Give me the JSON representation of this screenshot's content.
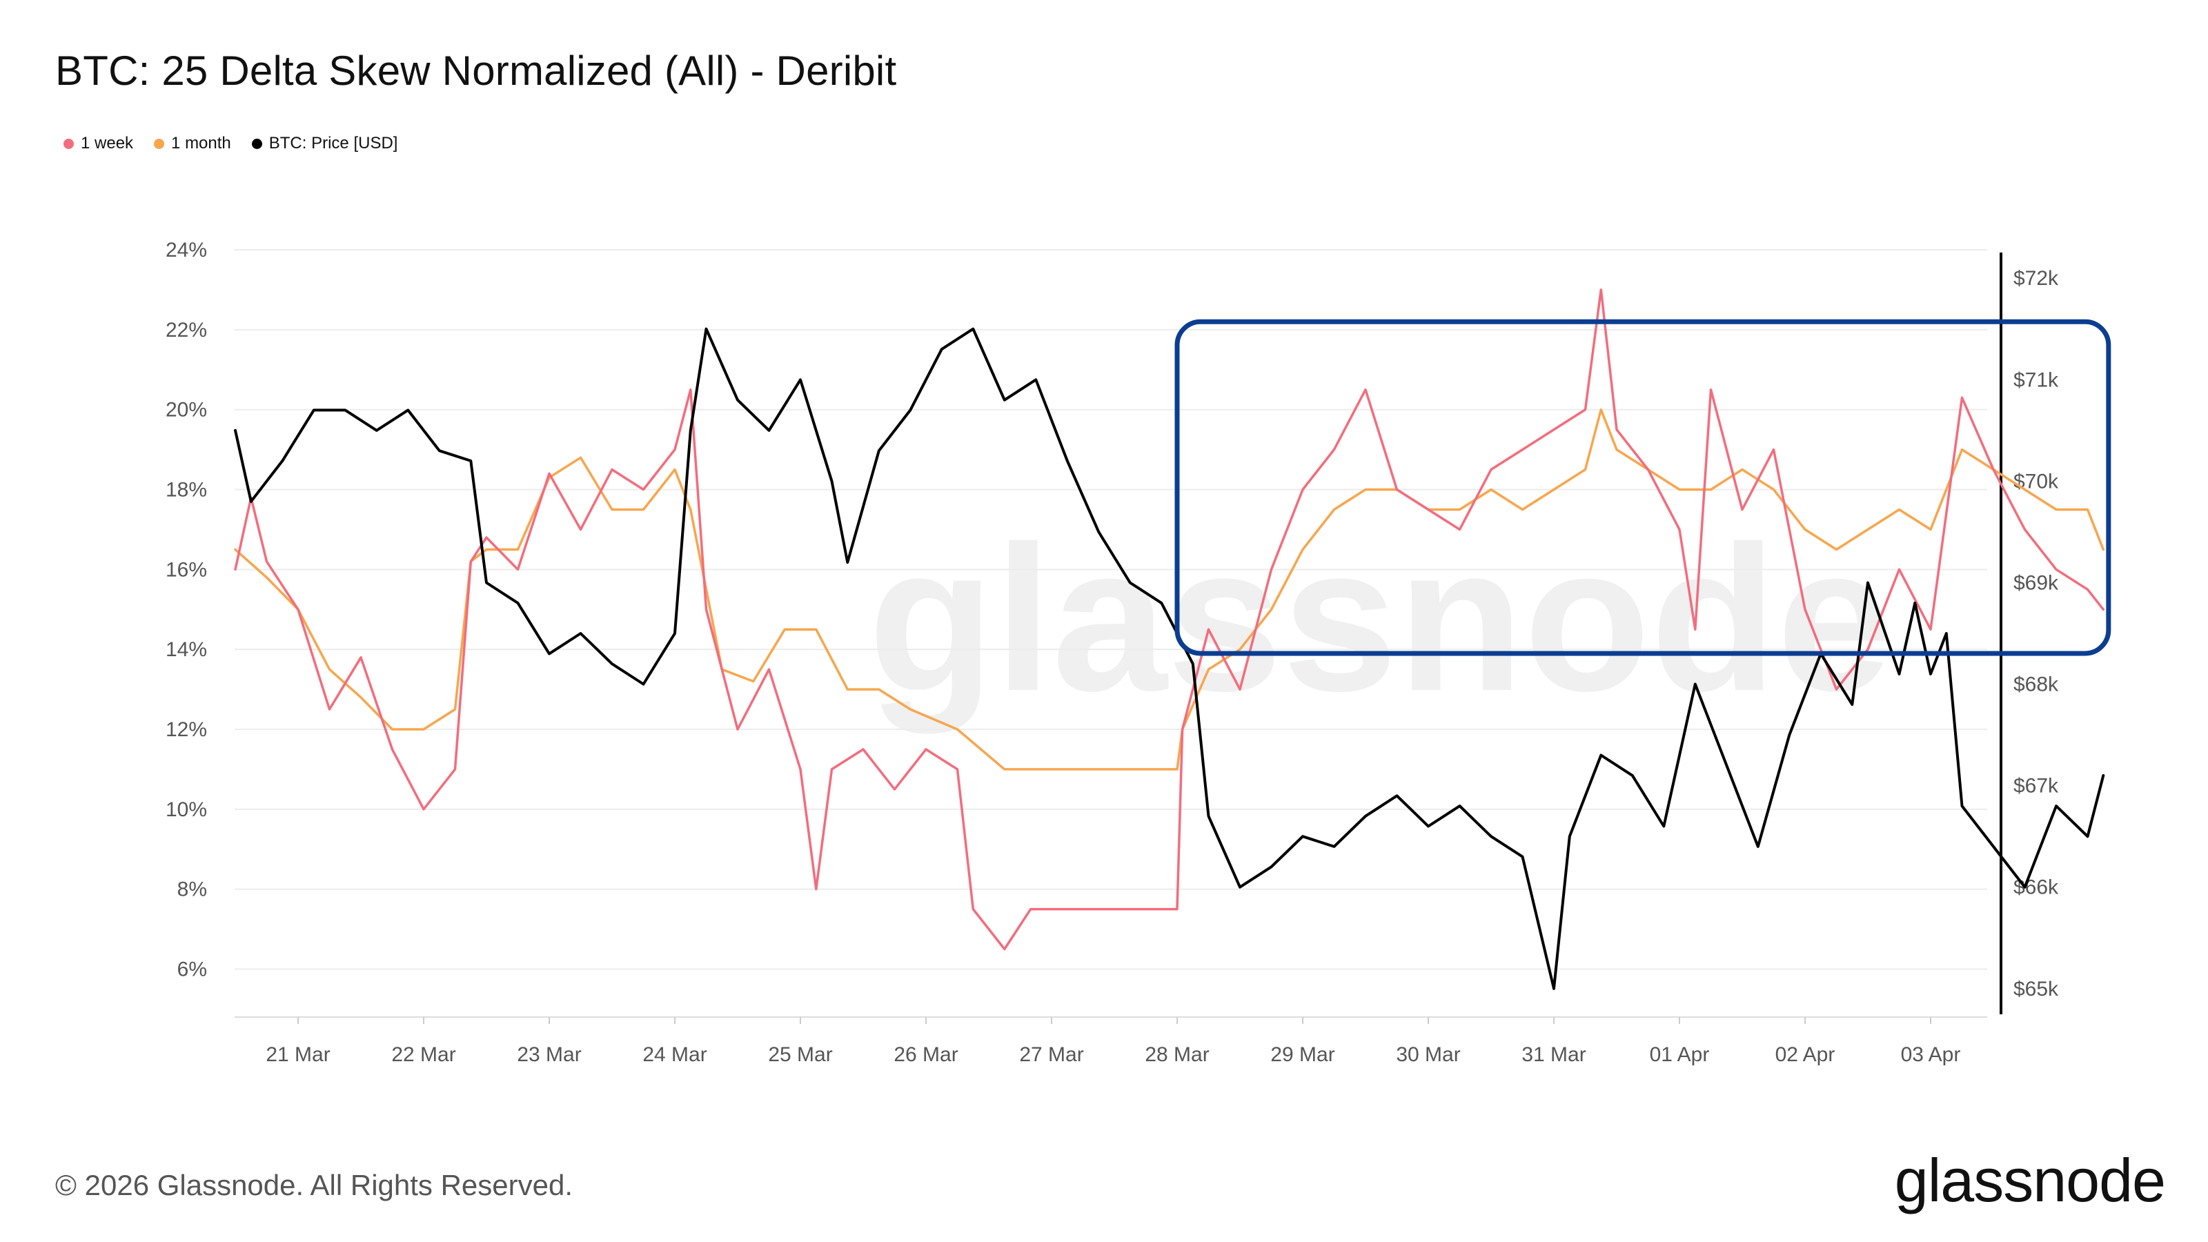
{
  "header": {
    "title": "BTC: 25 Delta Skew Normalized (All) - Deribit"
  },
  "legend": [
    {
      "label": "1 week",
      "color": "#f26d7d"
    },
    {
      "label": "1 month",
      "color": "#f7a64e"
    },
    {
      "label": "BTC: Price [USD]",
      "color": "#000000"
    }
  ],
  "footer": {
    "copyright": "© 2026 Glassnode. All Rights Reserved.",
    "logo": "glassnode"
  },
  "watermark": "glassnode",
  "chart_data": {
    "type": "line",
    "title": "BTC: 25 Delta Skew Normalized (All) - Deribit",
    "x_axis": {
      "type": "time",
      "start": "2026-03-20T12:00",
      "end": "2026-04-03T12:00",
      "tick_labels": [
        "21 Mar",
        "22 Mar",
        "23 Mar",
        "24 Mar",
        "25 Mar",
        "26 Mar",
        "27 Mar",
        "28 Mar",
        "29 Mar",
        "30 Mar",
        "31 Mar",
        "01 Apr",
        "02 Apr",
        "03 Apr"
      ],
      "tick_dates": [
        "2026-03-21",
        "2026-03-22",
        "2026-03-23",
        "2026-03-24",
        "2026-03-25",
        "2026-03-26",
        "2026-03-27",
        "2026-03-28",
        "2026-03-29",
        "2026-03-30",
        "2026-03-31",
        "2026-04-01",
        "2026-04-02",
        "2026-04-03"
      ]
    },
    "y_left": {
      "unit": "%",
      "ylim": [
        4.8,
        24
      ],
      "ticks": [
        6,
        8,
        10,
        12,
        14,
        16,
        18,
        20,
        22,
        24
      ],
      "tick_labels": [
        "6%",
        "8%",
        "10%",
        "12%",
        "14%",
        "16%",
        "18%",
        "20%",
        "22%",
        "24%"
      ]
    },
    "y_right": {
      "unit": "USD",
      "ylim": [
        64720,
        72280
      ],
      "ticks": [
        65000,
        66000,
        67000,
        68000,
        69000,
        70000,
        71000,
        72000
      ],
      "tick_labels": [
        "$65k",
        "$66k",
        "$67k",
        "$68k",
        "$69k",
        "$70k",
        "$71k",
        "$72k"
      ]
    },
    "grid": {
      "horizontal": true,
      "vertical": false
    },
    "legend_position": "top-left",
    "series": [
      {
        "name": "1 week",
        "axis": "left",
        "color": "#f26d7d",
        "points": [
          [
            "2026-03-20T12:00",
            16.0
          ],
          [
            "2026-03-20T15:00",
            17.8
          ],
          [
            "2026-03-20T18:00",
            16.2
          ],
          [
            "2026-03-21T00:00",
            15.0
          ],
          [
            "2026-03-21T06:00",
            12.5
          ],
          [
            "2026-03-21T12:00",
            13.8
          ],
          [
            "2026-03-21T18:00",
            11.5
          ],
          [
            "2026-03-22T00:00",
            10.0
          ],
          [
            "2026-03-22T06:00",
            11.0
          ],
          [
            "2026-03-22T09:00",
            16.2
          ],
          [
            "2026-03-22T12:00",
            16.8
          ],
          [
            "2026-03-22T18:00",
            16.0
          ],
          [
            "2026-03-23T00:00",
            18.4
          ],
          [
            "2026-03-23T06:00",
            17.0
          ],
          [
            "2026-03-23T12:00",
            18.5
          ],
          [
            "2026-03-23T18:00",
            18.0
          ],
          [
            "2026-03-24T00:00",
            19.0
          ],
          [
            "2026-03-24T03:00",
            20.5
          ],
          [
            "2026-03-24T06:00",
            15.0
          ],
          [
            "2026-03-24T12:00",
            12.0
          ],
          [
            "2026-03-24T18:00",
            13.5
          ],
          [
            "2026-03-25T00:00",
            11.0
          ],
          [
            "2026-03-25T03:00",
            8.0
          ],
          [
            "2026-03-25T06:00",
            11.0
          ],
          [
            "2026-03-25T12:00",
            11.5
          ],
          [
            "2026-03-25T18:00",
            10.5
          ],
          [
            "2026-03-26T00:00",
            11.5
          ],
          [
            "2026-03-26T06:00",
            11.0
          ],
          [
            "2026-03-26T09:00",
            7.5
          ],
          [
            "2026-03-26T15:00",
            6.5
          ],
          [
            "2026-03-26T20:00",
            7.5
          ],
          [
            "2026-03-28T00:00",
            7.5
          ],
          [
            "2026-03-28T01:00",
            12.0
          ],
          [
            "2026-03-28T06:00",
            14.5
          ],
          [
            "2026-03-28T12:00",
            13.0
          ],
          [
            "2026-03-28T18:00",
            16.0
          ],
          [
            "2026-03-29T00:00",
            18.0
          ],
          [
            "2026-03-29T06:00",
            19.0
          ],
          [
            "2026-03-29T12:00",
            20.5
          ],
          [
            "2026-03-29T18:00",
            18.0
          ],
          [
            "2026-03-30T00:00",
            17.5
          ],
          [
            "2026-03-30T06:00",
            17.0
          ],
          [
            "2026-03-30T12:00",
            18.5
          ],
          [
            "2026-03-30T18:00",
            19.0
          ],
          [
            "2026-03-31T00:00",
            19.5
          ],
          [
            "2026-03-31T06:00",
            20.0
          ],
          [
            "2026-03-31T09:00",
            23.0
          ],
          [
            "2026-03-31T12:00",
            19.5
          ],
          [
            "2026-03-31T18:00",
            18.5
          ],
          [
            "2026-04-01T00:00",
            17.0
          ],
          [
            "2026-04-01T03:00",
            14.5
          ],
          [
            "2026-04-01T06:00",
            20.5
          ],
          [
            "2026-04-01T12:00",
            17.5
          ],
          [
            "2026-04-01T18:00",
            19.0
          ],
          [
            "2026-04-02T00:00",
            15.0
          ],
          [
            "2026-04-02T06:00",
            13.0
          ],
          [
            "2026-04-02T12:00",
            14.0
          ],
          [
            "2026-04-02T18:00",
            16.0
          ],
          [
            "2026-04-03T00:00",
            14.5
          ],
          [
            "2026-04-03T06:00",
            20.3
          ],
          [
            "2026-04-03T12:00",
            18.5
          ],
          [
            "2026-04-03T18:00",
            17.0
          ],
          [
            "2026-04-04T00:00",
            16.0
          ],
          [
            "2026-04-04T06:00",
            15.5
          ],
          [
            "2026-04-04T09:00",
            15.0
          ]
        ]
      },
      {
        "name": "1 month",
        "axis": "left",
        "color": "#f7a64e",
        "points": [
          [
            "2026-03-20T12:00",
            16.5
          ],
          [
            "2026-03-20T18:00",
            15.8
          ],
          [
            "2026-03-21T00:00",
            15.0
          ],
          [
            "2026-03-21T06:00",
            13.5
          ],
          [
            "2026-03-21T12:00",
            12.8
          ],
          [
            "2026-03-21T18:00",
            12.0
          ],
          [
            "2026-03-22T00:00",
            12.0
          ],
          [
            "2026-03-22T06:00",
            12.5
          ],
          [
            "2026-03-22T09:00",
            16.2
          ],
          [
            "2026-03-22T12:00",
            16.5
          ],
          [
            "2026-03-22T18:00",
            16.5
          ],
          [
            "2026-03-23T00:00",
            18.3
          ],
          [
            "2026-03-23T06:00",
            18.8
          ],
          [
            "2026-03-23T12:00",
            17.5
          ],
          [
            "2026-03-23T18:00",
            17.5
          ],
          [
            "2026-03-24T00:00",
            18.5
          ],
          [
            "2026-03-24T03:00",
            17.5
          ],
          [
            "2026-03-24T09:00",
            13.5
          ],
          [
            "2026-03-24T15:00",
            13.2
          ],
          [
            "2026-03-24T21:00",
            14.5
          ],
          [
            "2026-03-25T03:00",
            14.5
          ],
          [
            "2026-03-25T09:00",
            13.0
          ],
          [
            "2026-03-25T15:00",
            13.0
          ],
          [
            "2026-03-25T21:00",
            12.5
          ],
          [
            "2026-03-26T06:00",
            12.0
          ],
          [
            "2026-03-26T15:00",
            11.0
          ],
          [
            "2026-03-27T00:00",
            11.0
          ],
          [
            "2026-03-28T00:00",
            11.0
          ],
          [
            "2026-03-28T01:00",
            12.0
          ],
          [
            "2026-03-28T06:00",
            13.5
          ],
          [
            "2026-03-28T12:00",
            14.0
          ],
          [
            "2026-03-28T18:00",
            15.0
          ],
          [
            "2026-03-29T00:00",
            16.5
          ],
          [
            "2026-03-29T06:00",
            17.5
          ],
          [
            "2026-03-29T12:00",
            18.0
          ],
          [
            "2026-03-29T18:00",
            18.0
          ],
          [
            "2026-03-30T00:00",
            17.5
          ],
          [
            "2026-03-30T06:00",
            17.5
          ],
          [
            "2026-03-30T12:00",
            18.0
          ],
          [
            "2026-03-30T18:00",
            17.5
          ],
          [
            "2026-03-31T00:00",
            18.0
          ],
          [
            "2026-03-31T06:00",
            18.5
          ],
          [
            "2026-03-31T09:00",
            20.0
          ],
          [
            "2026-03-31T12:00",
            19.0
          ],
          [
            "2026-03-31T18:00",
            18.5
          ],
          [
            "2026-04-01T00:00",
            18.0
          ],
          [
            "2026-04-01T06:00",
            18.0
          ],
          [
            "2026-04-01T12:00",
            18.5
          ],
          [
            "2026-04-01T18:00",
            18.0
          ],
          [
            "2026-04-02T00:00",
            17.0
          ],
          [
            "2026-04-02T06:00",
            16.5
          ],
          [
            "2026-04-02T12:00",
            17.0
          ],
          [
            "2026-04-02T18:00",
            17.5
          ],
          [
            "2026-04-03T00:00",
            17.0
          ],
          [
            "2026-04-03T06:00",
            19.0
          ],
          [
            "2026-04-03T12:00",
            18.5
          ],
          [
            "2026-04-03T18:00",
            18.0
          ],
          [
            "2026-04-04T00:00",
            17.5
          ],
          [
            "2026-04-04T06:00",
            17.5
          ],
          [
            "2026-04-04T09:00",
            16.5
          ]
        ]
      },
      {
        "name": "BTC: Price [USD]",
        "axis": "right",
        "color": "#000000",
        "points": [
          [
            "2026-03-20T12:00",
            70500
          ],
          [
            "2026-03-20T15:00",
            69800
          ],
          [
            "2026-03-20T21:00",
            70200
          ],
          [
            "2026-03-21T03:00",
            70700
          ],
          [
            "2026-03-21T09:00",
            70700
          ],
          [
            "2026-03-21T15:00",
            70500
          ],
          [
            "2026-03-21T21:00",
            70700
          ],
          [
            "2026-03-22T03:00",
            70300
          ],
          [
            "2026-03-22T09:00",
            70200
          ],
          [
            "2026-03-22T12:00",
            69000
          ],
          [
            "2026-03-22T18:00",
            68800
          ],
          [
            "2026-03-23T00:00",
            68300
          ],
          [
            "2026-03-23T06:00",
            68500
          ],
          [
            "2026-03-23T12:00",
            68200
          ],
          [
            "2026-03-23T18:00",
            68000
          ],
          [
            "2026-03-24T00:00",
            68500
          ],
          [
            "2026-03-24T03:00",
            70500
          ],
          [
            "2026-03-24T06:00",
            71500
          ],
          [
            "2026-03-24T12:00",
            70800
          ],
          [
            "2026-03-24T18:00",
            70500
          ],
          [
            "2026-03-25T00:00",
            71000
          ],
          [
            "2026-03-25T06:00",
            70000
          ],
          [
            "2026-03-25T09:00",
            69200
          ],
          [
            "2026-03-25T15:00",
            70300
          ],
          [
            "2026-03-25T21:00",
            70700
          ],
          [
            "2026-03-26T03:00",
            71300
          ],
          [
            "2026-03-26T09:00",
            71500
          ],
          [
            "2026-03-26T15:00",
            70800
          ],
          [
            "2026-03-26T21:00",
            71000
          ],
          [
            "2026-03-27T03:00",
            70200
          ],
          [
            "2026-03-27T09:00",
            69500
          ],
          [
            "2026-03-27T15:00",
            69000
          ],
          [
            "2026-03-27T21:00",
            68800
          ],
          [
            "2026-03-28T03:00",
            68200
          ],
          [
            "2026-03-28T06:00",
            66700
          ],
          [
            "2026-03-28T12:00",
            66000
          ],
          [
            "2026-03-28T18:00",
            66200
          ],
          [
            "2026-03-29T00:00",
            66500
          ],
          [
            "2026-03-29T06:00",
            66400
          ],
          [
            "2026-03-29T12:00",
            66700
          ],
          [
            "2026-03-29T18:00",
            66900
          ],
          [
            "2026-03-30T00:00",
            66600
          ],
          [
            "2026-03-30T06:00",
            66800
          ],
          [
            "2026-03-30T12:00",
            66500
          ],
          [
            "2026-03-30T18:00",
            66300
          ],
          [
            "2026-03-31T00:00",
            65000
          ],
          [
            "2026-03-31T03:00",
            66500
          ],
          [
            "2026-03-31T09:00",
            67300
          ],
          [
            "2026-03-31T15:00",
            67100
          ],
          [
            "2026-03-31T21:00",
            66600
          ],
          [
            "2026-04-01T03:00",
            68000
          ],
          [
            "2026-04-01T09:00",
            67200
          ],
          [
            "2026-04-01T15:00",
            66400
          ],
          [
            "2026-04-01T21:00",
            67500
          ],
          [
            "2026-04-02T03:00",
            68300
          ],
          [
            "2026-04-02T09:00",
            67800
          ],
          [
            "2026-04-02T12:00",
            69000
          ],
          [
            "2026-04-02T18:00",
            68100
          ],
          [
            "2026-04-02T21:00",
            68800
          ],
          [
            "2026-04-03T00:00",
            68100
          ],
          [
            "2026-04-03T03:00",
            68500
          ],
          [
            "2026-04-03T06:00",
            66800
          ],
          [
            "2026-04-03T12:00",
            66400
          ],
          [
            "2026-04-03T18:00",
            66000
          ],
          [
            "2026-04-04T00:00",
            66800
          ],
          [
            "2026-04-04T06:00",
            66500
          ],
          [
            "2026-04-04T09:00",
            67100
          ]
        ]
      }
    ],
    "annotation": {
      "type": "highlight-box",
      "color": "#0b3d91",
      "x_range": [
        "2026-03-28T00:00",
        "2026-04-04T10:00"
      ],
      "y_range": [
        13.9,
        22.2
      ],
      "axis": "left"
    }
  }
}
